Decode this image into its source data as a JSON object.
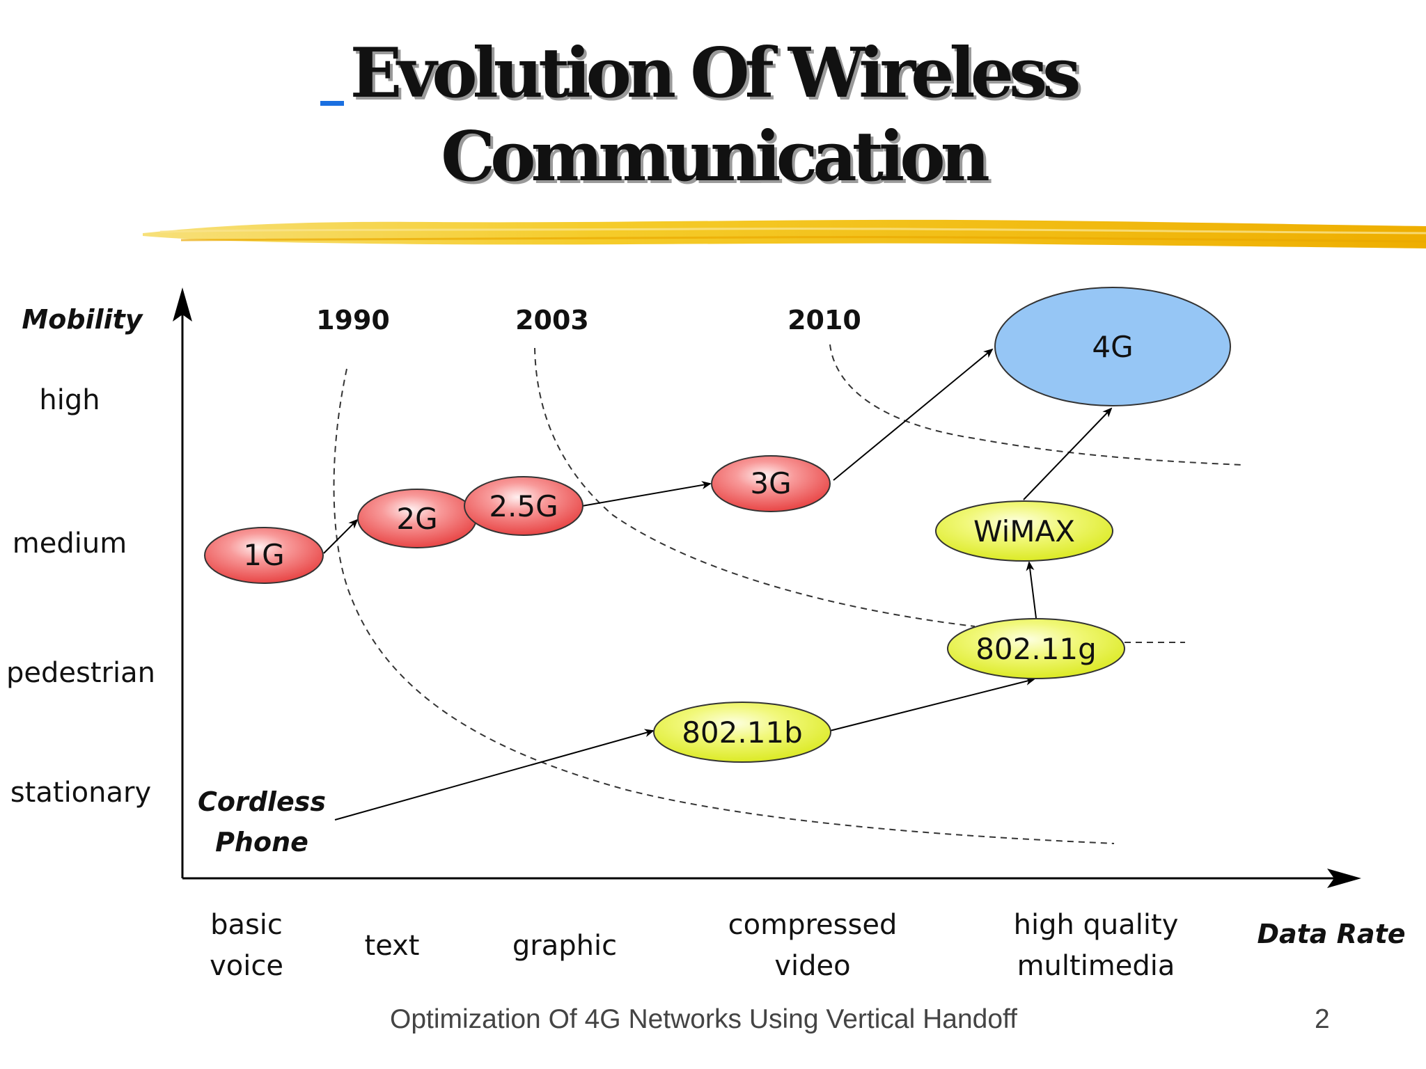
{
  "slide": {
    "title_line_1": "Evolution Of Wireless",
    "title_line_2": "Communication"
  },
  "footer": {
    "title": "Optimization Of 4G Networks Using Vertical Handoff",
    "page": "2"
  },
  "colors": {
    "red_node": "#f05a5a",
    "yellow_node": "#e6f23a",
    "blue_node": "#96c6f5",
    "underline": "#f2c200"
  },
  "diagram": {
    "y_axis_title": "Mobility",
    "x_axis_title": "Data Rate",
    "mobility_levels": [
      "high",
      "medium",
      "pedestrian",
      "stationary"
    ],
    "data_rate_levels": [
      [
        "basic",
        "voice"
      ],
      [
        "text"
      ],
      [
        "graphic"
      ],
      [
        "compressed",
        "video"
      ],
      [
        "high quality",
        "multimedia"
      ]
    ],
    "years": [
      "1990",
      "2003",
      "2010"
    ],
    "start_label": [
      "Cordless",
      "Phone"
    ],
    "nodes": {
      "n1g": "1G",
      "n2g": "2G",
      "n25g": "2.5G",
      "n3g": "3G",
      "n4g": "4G",
      "wimax": "WiMAX",
      "n80211g": "802.11g",
      "n80211b": "802.11b"
    }
  }
}
